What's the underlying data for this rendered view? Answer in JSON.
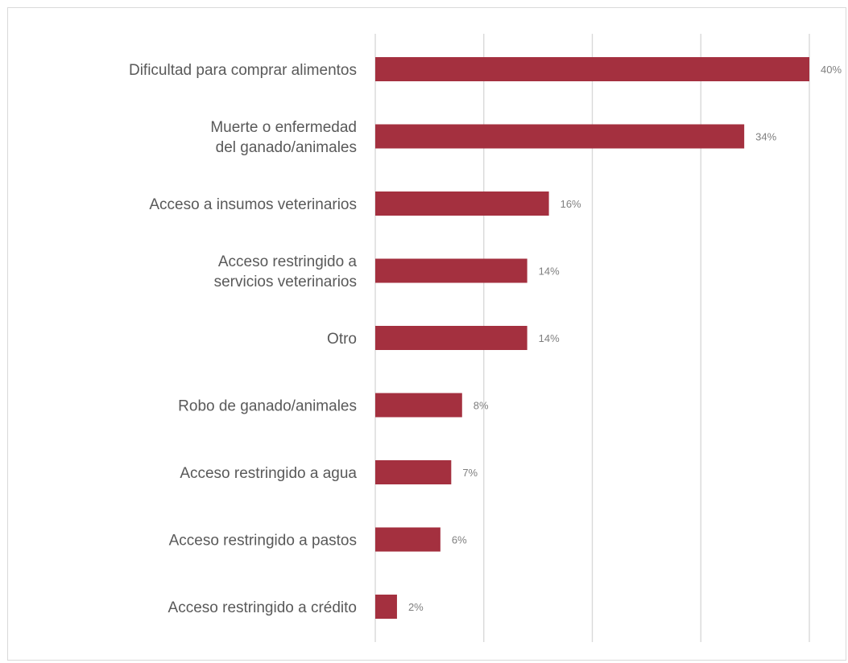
{
  "chart_data": {
    "type": "bar",
    "orientation": "horizontal",
    "categories": [
      [
        "Dificultad para comprar alimentos"
      ],
      [
        "Muerte o enfermedad",
        "del ganado/animales"
      ],
      [
        "Acceso a insumos veterinarios"
      ],
      [
        "Acceso restringido a",
        "servicios veterinarios"
      ],
      [
        "Otro"
      ],
      [
        "Robo de ganado/animales"
      ],
      [
        "Acceso restringido a agua"
      ],
      [
        "Acceso restringido a pastos"
      ],
      [
        "Acceso restringido a crédito"
      ]
    ],
    "values": [
      40,
      34,
      16,
      14,
      14,
      8,
      7,
      6,
      2
    ],
    "value_labels": [
      "40%",
      "34%",
      "16%",
      "14%",
      "14%",
      "8%",
      "7%",
      "6%",
      "2%"
    ],
    "unit": "%",
    "xlim": [
      0,
      40
    ],
    "x_gridlines": [
      0,
      10,
      20,
      30,
      40
    ],
    "grid": true,
    "legend": false,
    "title": "",
    "xlabel": "",
    "ylabel": "",
    "bar_color": "#a4303f"
  }
}
